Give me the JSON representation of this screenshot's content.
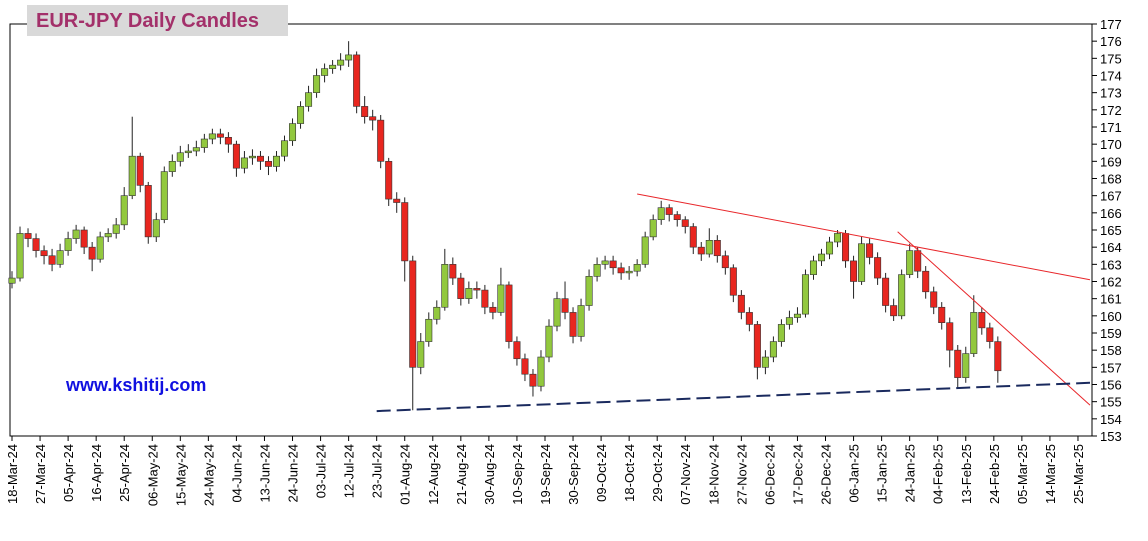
{
  "chart_data": {
    "type": "candlestick",
    "title": "EUR-JPY Daily  Candles",
    "watermark": "www.kshitij.com",
    "up_color": "#92c83e",
    "down_color": "#e8261f",
    "x": [
      "2024-03-18",
      "2024-03-20",
      "2024-03-22",
      "2024-03-26",
      "2024-03-28",
      "2024-04-01",
      "2024-04-03",
      "2024-04-05",
      "2024-04-09",
      "2024-04-11",
      "2024-04-15",
      "2024-04-17",
      "2024-04-19",
      "2024-04-23",
      "2024-04-25",
      "2024-04-29",
      "2024-05-01",
      "2024-05-03",
      "2024-05-07",
      "2024-05-09",
      "2024-05-13",
      "2024-05-15",
      "2024-05-17",
      "2024-05-21",
      "2024-05-23",
      "2024-05-27",
      "2024-05-29",
      "2024-05-31",
      "2024-06-04",
      "2024-06-06",
      "2024-06-10",
      "2024-06-12",
      "2024-06-14",
      "2024-06-18",
      "2024-06-20",
      "2024-06-24",
      "2024-06-26",
      "2024-06-28",
      "2024-07-02",
      "2024-07-04",
      "2024-07-08",
      "2024-07-10",
      "2024-07-12",
      "2024-07-16",
      "2024-07-18",
      "2024-07-22",
      "2024-07-24",
      "2024-07-26",
      "2024-07-30",
      "2024-08-01",
      "2024-08-05",
      "2024-08-07",
      "2024-08-09",
      "2024-08-13",
      "2024-08-15",
      "2024-08-19",
      "2024-08-21",
      "2024-08-23",
      "2024-08-27",
      "2024-08-29",
      "2024-09-02",
      "2024-09-04",
      "2024-09-06",
      "2024-09-10",
      "2024-09-12",
      "2024-09-16",
      "2024-09-18",
      "2024-09-20",
      "2024-09-24",
      "2024-09-26",
      "2024-09-30",
      "2024-10-02",
      "2024-10-04",
      "2024-10-08",
      "2024-10-10",
      "2024-10-14",
      "2024-10-16",
      "2024-10-18",
      "2024-10-22",
      "2024-10-24",
      "2024-10-28",
      "2024-10-30",
      "2024-11-01",
      "2024-11-05",
      "2024-11-07",
      "2024-11-11",
      "2024-11-13",
      "2024-11-15",
      "2024-11-19",
      "2024-11-21",
      "2024-11-25",
      "2024-11-27",
      "2024-11-29",
      "2024-12-03",
      "2024-12-05",
      "2024-12-09",
      "2024-12-11",
      "2024-12-13",
      "2024-12-17",
      "2024-12-19",
      "2024-12-23",
      "2024-12-25",
      "2024-12-27",
      "2024-12-31",
      "2025-01-02",
      "2025-01-06",
      "2025-01-08",
      "2025-01-10",
      "2025-01-14",
      "2025-01-16",
      "2025-01-20",
      "2025-01-22",
      "2025-01-24",
      "2025-01-28",
      "2025-01-30",
      "2025-02-03",
      "2025-02-05",
      "2025-02-07",
      "2025-02-11",
      "2025-02-13",
      "2025-02-17",
      "2025-02-19",
      "2025-02-21",
      "2025-02-25"
    ],
    "open": [
      161.9,
      162.2,
      164.8,
      164.5,
      163.8,
      163.5,
      163.0,
      163.8,
      164.5,
      165.0,
      164.0,
      163.3,
      164.6,
      164.8,
      165.3,
      167.0,
      169.3,
      167.6,
      164.6,
      165.6,
      168.4,
      169.0,
      169.5,
      169.6,
      169.8,
      170.3,
      170.6,
      170.4,
      170.0,
      168.6,
      169.2,
      169.3,
      169.0,
      168.7,
      169.3,
      170.2,
      171.2,
      172.2,
      173.0,
      174.0,
      174.4,
      174.6,
      174.9,
      175.2,
      172.2,
      171.6,
      171.4,
      169.0,
      166.8,
      166.6,
      163.2,
      157.0,
      158.5,
      159.8,
      160.5,
      163.0,
      162.2,
      161.0,
      161.6,
      161.5,
      160.5,
      160.2,
      161.8,
      158.5,
      157.5,
      156.6,
      155.9,
      157.6,
      159.4,
      161.0,
      160.2,
      158.8,
      160.6,
      162.3,
      163.0,
      163.2,
      162.8,
      162.5,
      162.6,
      163.0,
      164.6,
      165.6,
      166.3,
      165.9,
      165.6,
      165.2,
      164.0,
      163.6,
      164.4,
      163.5,
      162.8,
      161.2,
      160.2,
      159.5,
      157.0,
      157.6,
      158.5,
      159.5,
      159.9,
      160.1,
      162.4,
      163.2,
      163.6,
      164.3,
      164.8,
      163.2,
      162.0,
      164.2,
      163.4,
      162.2,
      160.6,
      160.0,
      162.4,
      163.8,
      162.6,
      161.4,
      160.5,
      159.6,
      158.0,
      156.4,
      157.8,
      160.2,
      159.3,
      158.5
    ],
    "high": [
      162.6,
      165.2,
      165.1,
      164.8,
      164.1,
      163.9,
      164.2,
      164.9,
      165.3,
      165.2,
      164.3,
      164.9,
      165.1,
      165.7,
      167.5,
      171.6,
      169.5,
      167.8,
      166.0,
      168.7,
      169.4,
      169.9,
      170.0,
      170.2,
      170.6,
      170.9,
      170.9,
      170.7,
      170.2,
      169.6,
      169.7,
      169.6,
      169.3,
      169.6,
      170.5,
      171.5,
      172.5,
      173.4,
      174.4,
      174.7,
      174.9,
      175.3,
      176.0,
      175.4,
      172.8,
      172.0,
      171.7,
      169.2,
      167.2,
      166.9,
      163.5,
      159.0,
      160.2,
      160.9,
      163.9,
      163.4,
      162.5,
      162.0,
      162.0,
      161.8,
      160.8,
      162.8,
      162.0,
      158.8,
      157.8,
      156.9,
      158.0,
      159.8,
      161.4,
      162.0,
      160.5,
      161.0,
      162.7,
      163.4,
      163.5,
      163.5,
      163.1,
      162.9,
      163.3,
      164.9,
      165.9,
      166.7,
      166.5,
      166.1,
      165.8,
      165.4,
      164.3,
      165.1,
      164.7,
      163.8,
      163.0,
      161.5,
      160.5,
      159.7,
      158.0,
      158.8,
      159.8,
      160.3,
      160.5,
      162.7,
      163.5,
      163.9,
      164.6,
      165.0,
      165.0,
      163.5,
      164.6,
      164.5,
      163.7,
      162.5,
      161.0,
      162.7,
      164.2,
      164.0,
      162.9,
      161.7,
      160.8,
      159.9,
      158.3,
      158.2,
      161.2,
      160.5,
      159.6,
      158.8
    ],
    "low": [
      161.6,
      162.0,
      164.0,
      163.4,
      163.0,
      162.6,
      162.8,
      163.5,
      164.2,
      163.6,
      162.6,
      163.1,
      164.3,
      164.5,
      165.0,
      166.8,
      167.2,
      164.2,
      164.3,
      165.4,
      168.1,
      168.7,
      169.2,
      169.3,
      169.5,
      170.0,
      170.0,
      169.5,
      168.1,
      168.3,
      168.8,
      168.5,
      168.2,
      168.4,
      169.0,
      169.9,
      170.9,
      171.9,
      172.7,
      173.6,
      174.1,
      174.3,
      174.5,
      171.8,
      171.2,
      170.8,
      168.6,
      166.4,
      166.0,
      162.0,
      154.5,
      156.6,
      158.2,
      159.5,
      160.3,
      161.8,
      160.6,
      160.7,
      161.0,
      160.1,
      159.8,
      160.0,
      158.1,
      157.1,
      156.2,
      155.3,
      155.6,
      157.3,
      159.1,
      159.8,
      158.4,
      158.5,
      160.3,
      162.0,
      162.7,
      162.4,
      162.1,
      162.1,
      162.3,
      162.8,
      164.4,
      165.3,
      165.5,
      165.2,
      164.8,
      163.6,
      163.2,
      163.4,
      163.1,
      162.4,
      160.8,
      159.8,
      159.1,
      156.3,
      156.6,
      157.3,
      158.2,
      159.2,
      159.6,
      159.9,
      162.1,
      162.9,
      163.3,
      164.0,
      162.8,
      161.0,
      161.8,
      163.0,
      161.8,
      160.2,
      159.7,
      159.8,
      162.2,
      162.2,
      161.0,
      160.1,
      159.2,
      157.0,
      155.8,
      156.1,
      157.6,
      158.9,
      158.1,
      156.1
    ],
    "close": [
      162.2,
      164.8,
      164.5,
      163.8,
      163.5,
      163.0,
      163.8,
      164.5,
      165.0,
      164.0,
      163.3,
      164.6,
      164.8,
      165.3,
      167.0,
      169.3,
      167.6,
      164.6,
      165.6,
      168.4,
      169.0,
      169.5,
      169.6,
      169.8,
      170.3,
      170.6,
      170.4,
      170.0,
      168.6,
      169.2,
      169.3,
      169.0,
      168.7,
      169.3,
      170.2,
      171.2,
      172.2,
      173.0,
      174.0,
      174.4,
      174.6,
      174.9,
      175.2,
      172.2,
      171.6,
      171.4,
      169.0,
      166.8,
      166.6,
      163.2,
      157.0,
      158.5,
      159.8,
      160.5,
      163.0,
      162.2,
      161.0,
      161.6,
      161.5,
      160.5,
      160.2,
      161.8,
      158.5,
      157.5,
      156.6,
      155.9,
      157.6,
      159.4,
      161.0,
      160.2,
      158.8,
      160.6,
      162.3,
      163.0,
      163.2,
      162.8,
      162.5,
      162.6,
      163.0,
      164.6,
      165.6,
      166.3,
      165.9,
      165.6,
      165.2,
      164.0,
      163.6,
      164.4,
      163.5,
      162.8,
      161.2,
      160.2,
      159.5,
      157.0,
      157.6,
      158.5,
      159.5,
      159.9,
      160.1,
      162.4,
      163.2,
      163.6,
      164.3,
      164.8,
      163.2,
      162.0,
      164.2,
      163.4,
      162.2,
      160.6,
      160.0,
      162.4,
      163.8,
      162.6,
      161.4,
      160.5,
      159.6,
      158.0,
      156.4,
      157.8,
      160.2,
      159.3,
      158.5,
      156.8
    ],
    "xlim": [
      "2024-03-18",
      "2025-03-28"
    ],
    "xticks": [
      {
        "value": "2024-03-18",
        "label": "18-Mar-24"
      },
      {
        "value": "2024-03-27",
        "label": "27-Mar-24"
      },
      {
        "value": "2024-04-05",
        "label": "05-Apr-24"
      },
      {
        "value": "2024-04-16",
        "label": "16-Apr-24"
      },
      {
        "value": "2024-04-25",
        "label": "25-Apr-24"
      },
      {
        "value": "2024-05-06",
        "label": "06-May-24"
      },
      {
        "value": "2024-05-15",
        "label": "15-May-24"
      },
      {
        "value": "2024-05-24",
        "label": "24-May-24"
      },
      {
        "value": "2024-06-04",
        "label": "04-Jun-24"
      },
      {
        "value": "2024-06-13",
        "label": "13-Jun-24"
      },
      {
        "value": "2024-06-24",
        "label": "24-Jun-24"
      },
      {
        "value": "2024-07-03",
        "label": "03-Jul-24"
      },
      {
        "value": "2024-07-12",
        "label": "12-Jul-24"
      },
      {
        "value": "2024-07-23",
        "label": "23-Jul-24"
      },
      {
        "value": "2024-08-01",
        "label": "01-Aug-24"
      },
      {
        "value": "2024-08-12",
        "label": "12-Aug-24"
      },
      {
        "value": "2024-08-21",
        "label": "21-Aug-24"
      },
      {
        "value": "2024-08-30",
        "label": "30-Aug-24"
      },
      {
        "value": "2024-09-10",
        "label": "10-Sep-24"
      },
      {
        "value": "2024-09-19",
        "label": "19-Sep-24"
      },
      {
        "value": "2024-09-30",
        "label": "30-Sep-24"
      },
      {
        "value": "2024-10-09",
        "label": "09-Oct-24"
      },
      {
        "value": "2024-10-18",
        "label": "18-Oct-24"
      },
      {
        "value": "2024-10-29",
        "label": "29-Oct-24"
      },
      {
        "value": "2024-11-07",
        "label": "07-Nov-24"
      },
      {
        "value": "2024-11-18",
        "label": "18-Nov-24"
      },
      {
        "value": "2024-11-27",
        "label": "27-Nov-24"
      },
      {
        "value": "2024-12-06",
        "label": "06-Dec-24"
      },
      {
        "value": "2024-12-17",
        "label": "17-Dec-24"
      },
      {
        "value": "2024-12-26",
        "label": "26-Dec-24"
      },
      {
        "value": "2025-01-06",
        "label": "06-Jan-25"
      },
      {
        "value": "2025-01-15",
        "label": "15-Jan-25"
      },
      {
        "value": "2025-01-24",
        "label": "24-Jan-25"
      },
      {
        "value": "2025-02-04",
        "label": "04-Feb-25"
      },
      {
        "value": "2025-02-13",
        "label": "13-Feb-25"
      },
      {
        "value": "2025-02-24",
        "label": "24-Feb-25"
      },
      {
        "value": "2025-03-05",
        "label": "05-Mar-25"
      },
      {
        "value": "2025-03-14",
        "label": "14-Mar-25"
      },
      {
        "value": "2025-03-25",
        "label": "25-Mar-25"
      }
    ],
    "ylim": [
      153,
      177
    ],
    "yticks": [
      153,
      154,
      155,
      156,
      157,
      158,
      159,
      160,
      161,
      162,
      163,
      164,
      165,
      166,
      167,
      168,
      169,
      170,
      171,
      172,
      173,
      174,
      175,
      176,
      177
    ],
    "lines": [
      {
        "x": [
          "2024-10-22",
          "2025-03-28"
        ],
        "y": [
          167.1,
          162.1
        ],
        "color": "#e8262a",
        "dashed": false
      },
      {
        "x": [
          "2025-01-21",
          "2025-03-28"
        ],
        "y": [
          164.9,
          154.8
        ],
        "color": "#e8262a",
        "dashed": false
      },
      {
        "x": [
          "2024-07-23",
          "2025-03-28"
        ],
        "y": [
          154.45,
          156.1
        ],
        "color": "#1a2a5e",
        "dashed": true
      }
    ]
  }
}
